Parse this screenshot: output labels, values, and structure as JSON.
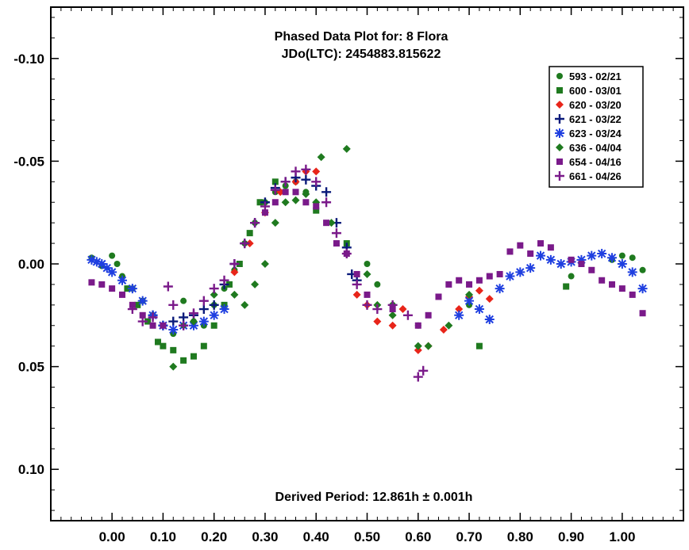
{
  "chart_data": {
    "type": "scatter",
    "title": "Phased Data Plot for: 8 Flora",
    "subtitle": "JDo(LTC): 2454883.815622",
    "annotation": "Derived Period: 12.861h ± 0.001h",
    "xlabel": "",
    "ylabel": "",
    "xlim": [
      -0.12,
      1.12
    ],
    "ylim": [
      -0.125,
      0.125
    ],
    "y_inverted": true,
    "grid": false,
    "legend_position": "top-right",
    "x_ticks": [
      0.0,
      0.1,
      0.2,
      0.3,
      0.4,
      0.5,
      0.6,
      0.7,
      0.8,
      0.9,
      1.0
    ],
    "x_tick_labels": [
      "0.00",
      "0.10",
      "0.20",
      "0.30",
      "0.40",
      "0.50",
      "0.60",
      "0.70",
      "0.80",
      "0.90",
      "1.00"
    ],
    "y_ticks": [
      -0.1,
      -0.05,
      0.0,
      0.05,
      0.1
    ],
    "y_tick_labels": [
      "-0.10",
      "-0.05",
      "0.00",
      "0.05",
      "0.10"
    ],
    "series": [
      {
        "name": "593 - 02/21",
        "marker": "circle",
        "color": "#1f7a1f",
        "points": [
          [
            -0.04,
            -0.003
          ],
          [
            -0.02,
            0.001
          ],
          [
            0.0,
            -0.004
          ],
          [
            0.01,
            0.0
          ],
          [
            0.02,
            0.006
          ],
          [
            0.04,
            0.012
          ],
          [
            0.06,
            0.018
          ],
          [
            0.08,
            0.025
          ],
          [
            0.1,
            0.03
          ],
          [
            0.12,
            0.034
          ],
          [
            0.14,
            0.018
          ],
          [
            0.16,
            0.028
          ],
          [
            0.18,
            0.03
          ],
          [
            0.2,
            0.02
          ],
          [
            0.22,
            0.012
          ],
          [
            0.24,
            0.003
          ],
          [
            0.26,
            -0.01
          ],
          [
            0.28,
            -0.02
          ],
          [
            0.3,
            -0.03
          ],
          [
            0.32,
            -0.035
          ],
          [
            0.34,
            -0.038
          ],
          [
            0.36,
            -0.04
          ],
          [
            0.38,
            -0.035
          ],
          [
            0.5,
            0.0
          ],
          [
            0.52,
            0.01
          ],
          [
            0.55,
            0.02
          ],
          [
            0.6,
            0.03
          ],
          [
            0.7,
            0.02
          ],
          [
            0.9,
            0.006
          ],
          [
            0.98,
            -0.002
          ],
          [
            1.0,
            -0.004
          ],
          [
            1.02,
            -0.003
          ],
          [
            1.04,
            0.003
          ]
        ]
      },
      {
        "name": "600 - 03/01",
        "marker": "square",
        "color": "#1f7a1f",
        "points": [
          [
            0.03,
            0.012
          ],
          [
            0.05,
            0.02
          ],
          [
            0.07,
            0.028
          ],
          [
            0.09,
            0.038
          ],
          [
            0.1,
            0.04
          ],
          [
            0.12,
            0.042
          ],
          [
            0.14,
            0.047
          ],
          [
            0.16,
            0.045
          ],
          [
            0.18,
            0.04
          ],
          [
            0.2,
            0.03
          ],
          [
            0.22,
            0.02
          ],
          [
            0.23,
            0.01
          ],
          [
            0.25,
            0.0
          ],
          [
            0.27,
            -0.015
          ],
          [
            0.29,
            -0.03
          ],
          [
            0.32,
            -0.04
          ],
          [
            0.4,
            -0.026
          ],
          [
            0.46,
            -0.01
          ],
          [
            0.72,
            0.04
          ],
          [
            0.89,
            0.011
          ]
        ]
      },
      {
        "name": "620 - 03/20",
        "marker": "diamond",
        "color": "#e8251a",
        "points": [
          [
            0.24,
            0.004
          ],
          [
            0.27,
            -0.01
          ],
          [
            0.3,
            -0.025
          ],
          [
            0.33,
            -0.035
          ],
          [
            0.36,
            -0.04
          ],
          [
            0.38,
            -0.045
          ],
          [
            0.4,
            -0.045
          ],
          [
            0.48,
            0.015
          ],
          [
            0.5,
            0.02
          ],
          [
            0.52,
            0.028
          ],
          [
            0.55,
            0.03
          ],
          [
            0.57,
            0.022
          ],
          [
            0.6,
            0.042
          ],
          [
            0.62,
            0.04
          ],
          [
            0.65,
            0.032
          ],
          [
            0.68,
            0.022
          ],
          [
            0.7,
            0.016
          ],
          [
            0.72,
            0.013
          ],
          [
            0.74,
            0.017
          ]
        ]
      },
      {
        "name": "621 - 03/22",
        "marker": "plus",
        "color": "#0a1a7a",
        "points": [
          [
            0.08,
            0.025
          ],
          [
            0.1,
            0.03
          ],
          [
            0.12,
            0.028
          ],
          [
            0.14,
            0.026
          ],
          [
            0.16,
            0.025
          ],
          [
            0.18,
            0.022
          ],
          [
            0.2,
            0.02
          ],
          [
            0.22,
            0.01
          ],
          [
            0.24,
            0.0
          ],
          [
            0.26,
            -0.01
          ],
          [
            0.28,
            -0.02
          ],
          [
            0.3,
            -0.03
          ],
          [
            0.32,
            -0.037
          ],
          [
            0.34,
            -0.04
          ],
          [
            0.36,
            -0.042
          ],
          [
            0.38,
            -0.041
          ],
          [
            0.4,
            -0.038
          ],
          [
            0.42,
            -0.035
          ],
          [
            0.44,
            -0.02
          ],
          [
            0.46,
            -0.008
          ],
          [
            0.47,
            0.005
          ],
          [
            0.48,
            0.008
          ]
        ]
      },
      {
        "name": "623 - 03/24",
        "marker": "asterisk",
        "color": "#1f3fe0",
        "points": [
          [
            -0.04,
            -0.002
          ],
          [
            -0.03,
            -0.001
          ],
          [
            -0.02,
            0.0
          ],
          [
            -0.01,
            0.002
          ],
          [
            0.0,
            0.004
          ],
          [
            0.02,
            0.008
          ],
          [
            0.04,
            0.012
          ],
          [
            0.06,
            0.018
          ],
          [
            0.08,
            0.025
          ],
          [
            0.1,
            0.03
          ],
          [
            0.12,
            0.032
          ],
          [
            0.14,
            0.03
          ],
          [
            0.16,
            0.03
          ],
          [
            0.18,
            0.028
          ],
          [
            0.2,
            0.025
          ],
          [
            0.22,
            0.022
          ],
          [
            0.68,
            0.025
          ],
          [
            0.7,
            0.018
          ],
          [
            0.72,
            0.022
          ],
          [
            0.74,
            0.027
          ],
          [
            0.76,
            0.012
          ],
          [
            0.78,
            0.006
          ],
          [
            0.8,
            0.004
          ],
          [
            0.82,
            0.002
          ],
          [
            0.84,
            -0.004
          ],
          [
            0.86,
            -0.002
          ],
          [
            0.88,
            0.0
          ],
          [
            0.9,
            -0.001
          ],
          [
            0.92,
            -0.002
          ],
          [
            0.94,
            -0.004
          ],
          [
            0.96,
            -0.005
          ],
          [
            0.98,
            -0.003
          ],
          [
            1.0,
            0.0
          ],
          [
            1.02,
            0.004
          ],
          [
            1.04,
            0.012
          ]
        ]
      },
      {
        "name": "636 - 04/04",
        "marker": "diamond",
        "color": "#1f7a1f",
        "points": [
          [
            0.12,
            0.05
          ],
          [
            0.14,
            0.03
          ],
          [
            0.16,
            0.028
          ],
          [
            0.2,
            0.015
          ],
          [
            0.24,
            0.015
          ],
          [
            0.26,
            0.02
          ],
          [
            0.28,
            0.01
          ],
          [
            0.3,
            0.0
          ],
          [
            0.32,
            -0.02
          ],
          [
            0.34,
            -0.03
          ],
          [
            0.36,
            -0.031
          ],
          [
            0.38,
            -0.034
          ],
          [
            0.4,
            -0.03
          ],
          [
            0.41,
            -0.052
          ],
          [
            0.43,
            -0.02
          ],
          [
            0.46,
            -0.056
          ],
          [
            0.5,
            0.005
          ],
          [
            0.52,
            0.02
          ],
          [
            0.55,
            0.025
          ],
          [
            0.6,
            0.04
          ],
          [
            0.62,
            0.04
          ],
          [
            0.66,
            0.03
          ],
          [
            0.7,
            0.015
          ]
        ]
      },
      {
        "name": "654 - 04/16",
        "marker": "square",
        "color": "#7a1a8a",
        "points": [
          [
            -0.04,
            0.009
          ],
          [
            -0.02,
            0.01
          ],
          [
            0.0,
            0.012
          ],
          [
            0.02,
            0.015
          ],
          [
            0.04,
            0.02
          ],
          [
            0.06,
            0.025
          ],
          [
            0.08,
            0.03
          ],
          [
            0.1,
            0.03
          ],
          [
            0.3,
            -0.025
          ],
          [
            0.32,
            -0.03
          ],
          [
            0.34,
            -0.035
          ],
          [
            0.36,
            -0.035
          ],
          [
            0.38,
            -0.03
          ],
          [
            0.4,
            -0.028
          ],
          [
            0.42,
            -0.02
          ],
          [
            0.44,
            -0.01
          ],
          [
            0.46,
            -0.005
          ],
          [
            0.48,
            0.005
          ],
          [
            0.5,
            0.015
          ],
          [
            0.55,
            0.022
          ],
          [
            0.6,
            0.03
          ],
          [
            0.62,
            0.025
          ],
          [
            0.64,
            0.016
          ],
          [
            0.66,
            0.01
          ],
          [
            0.68,
            0.008
          ],
          [
            0.7,
            0.01
          ],
          [
            0.72,
            0.008
          ],
          [
            0.74,
            0.006
          ],
          [
            0.76,
            0.005
          ],
          [
            0.78,
            -0.006
          ],
          [
            0.8,
            -0.009
          ],
          [
            0.82,
            -0.005
          ],
          [
            0.84,
            -0.01
          ],
          [
            0.86,
            -0.008
          ],
          [
            0.9,
            -0.002
          ],
          [
            0.92,
            0.0
          ],
          [
            0.94,
            0.003
          ],
          [
            0.96,
            0.008
          ],
          [
            0.98,
            0.01
          ],
          [
            1.0,
            0.012
          ],
          [
            1.02,
            0.015
          ],
          [
            1.04,
            0.024
          ]
        ]
      },
      {
        "name": "661 - 04/26",
        "marker": "plus",
        "color": "#7a1a8a",
        "points": [
          [
            0.04,
            0.022
          ],
          [
            0.06,
            0.028
          ],
          [
            0.08,
            0.026
          ],
          [
            0.11,
            0.011
          ],
          [
            0.12,
            0.02
          ],
          [
            0.14,
            0.03
          ],
          [
            0.16,
            0.024
          ],
          [
            0.18,
            0.018
          ],
          [
            0.2,
            0.012
          ],
          [
            0.22,
            0.008
          ],
          [
            0.24,
            0.0
          ],
          [
            0.26,
            -0.01
          ],
          [
            0.28,
            -0.02
          ],
          [
            0.3,
            -0.028
          ],
          [
            0.32,
            -0.036
          ],
          [
            0.34,
            -0.04
          ],
          [
            0.36,
            -0.045
          ],
          [
            0.38,
            -0.046
          ],
          [
            0.4,
            -0.04
          ],
          [
            0.42,
            -0.03
          ],
          [
            0.44,
            -0.015
          ],
          [
            0.46,
            -0.005
          ],
          [
            0.48,
            0.01
          ],
          [
            0.5,
            0.02
          ],
          [
            0.52,
            0.022
          ],
          [
            0.55,
            0.02
          ],
          [
            0.58,
            0.025
          ],
          [
            0.6,
            0.055
          ],
          [
            0.61,
            0.052
          ]
        ]
      }
    ]
  }
}
